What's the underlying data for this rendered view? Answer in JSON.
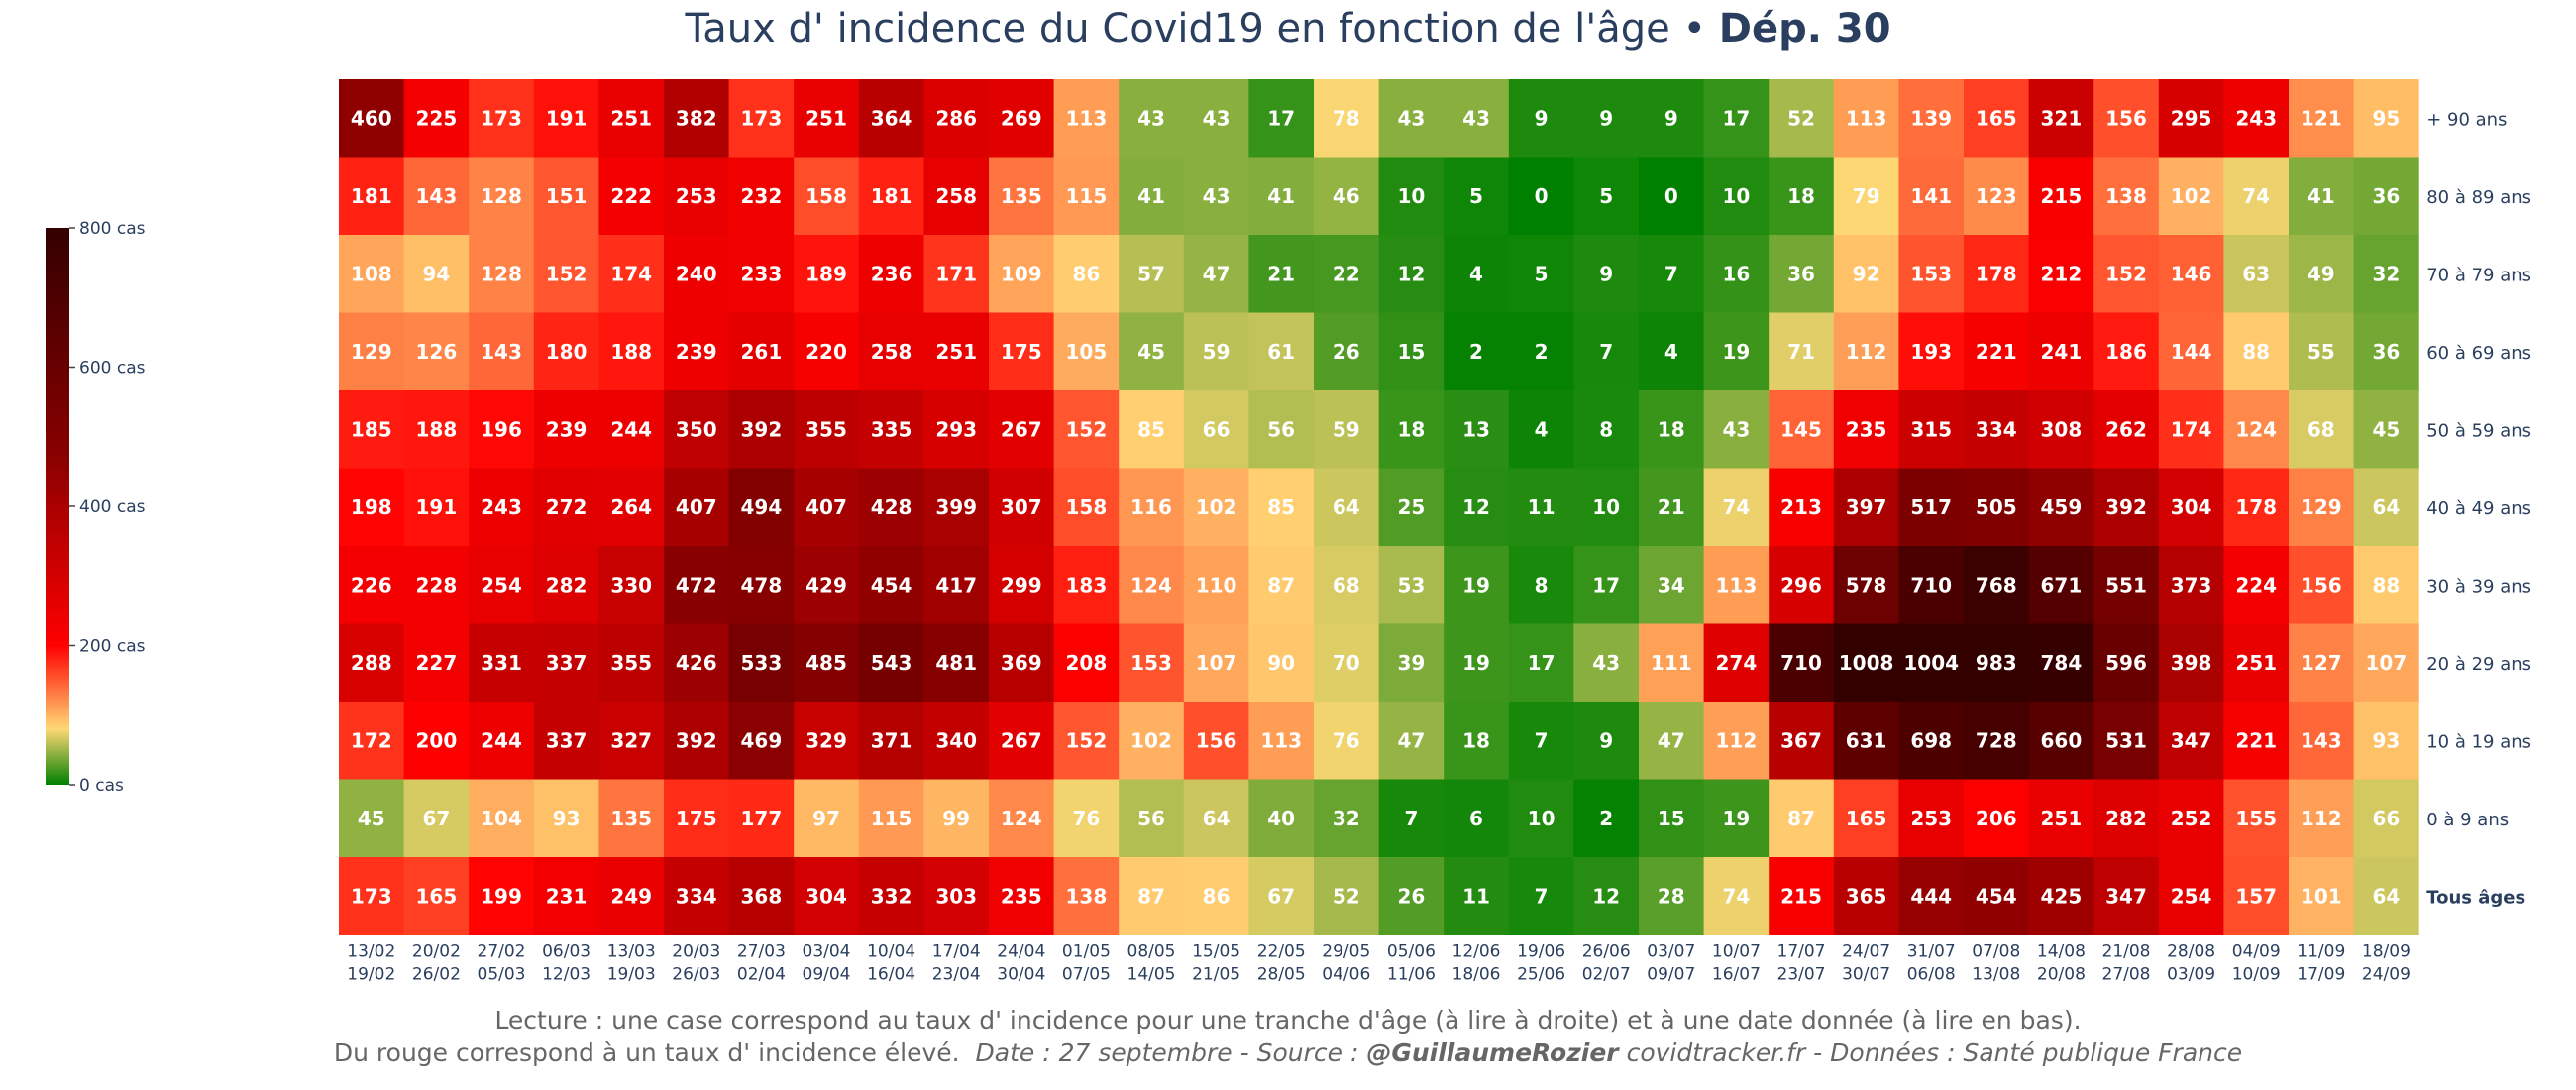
{
  "title": {
    "main": "Taux d' incidence du Covid19 en fonction de l'âge",
    "separator": " • ",
    "dept": "Dép. 30"
  },
  "footer": {
    "line1": "Lecture : une case correspond au taux d' incidence pour une tranche d'âge (à lire à droite) et à une date donnée (à lire en bas).",
    "line2_plain": "Du rouge correspond à un taux d' incidence élevé.",
    "line2_date_source": "Date : 27 septembre - Source : ",
    "line2_author": "@GuillaumeRozier",
    "line2_rest": " covidtracker.fr - Données : Santé publique France"
  },
  "colors": {
    "scale": [
      "#008000",
      "#ffd875",
      "#ff0000",
      "#860000",
      "#330000"
    ],
    "text": "#2a3f5f",
    "cell_text": "#ffffff"
  },
  "chart_data": {
    "type": "heatmap",
    "colorbar": {
      "ticks": [
        0,
        200,
        400,
        600,
        800
      ],
      "tick_labels": [
        "0 cas",
        "200 cas",
        "400 cas",
        "600 cas",
        "800 cas"
      ],
      "range": [
        0,
        800
      ]
    },
    "x_top": [
      "13/02",
      "20/02",
      "27/02",
      "06/03",
      "13/03",
      "20/03",
      "27/03",
      "03/04",
      "10/04",
      "17/04",
      "24/04",
      "01/05",
      "08/05",
      "15/05",
      "22/05",
      "29/05",
      "05/06",
      "12/06",
      "19/06",
      "26/06",
      "03/07",
      "10/07",
      "17/07",
      "24/07",
      "31/07",
      "07/08",
      "14/08",
      "21/08",
      "28/08",
      "04/09",
      "11/09",
      "18/09"
    ],
    "x_bottom": [
      "19/02",
      "26/02",
      "05/03",
      "12/03",
      "19/03",
      "26/03",
      "02/04",
      "09/04",
      "16/04",
      "23/04",
      "30/04",
      "07/05",
      "14/05",
      "21/05",
      "28/05",
      "04/06",
      "11/06",
      "18/06",
      "25/06",
      "02/07",
      "09/07",
      "16/07",
      "23/07",
      "30/07",
      "06/08",
      "13/08",
      "20/08",
      "27/08",
      "03/09",
      "10/09",
      "17/09",
      "24/09"
    ],
    "rows": [
      {
        "label": "+ 90 ans",
        "bold": false,
        "values": [
          460,
          225,
          173,
          191,
          251,
          382,
          173,
          251,
          364,
          286,
          269,
          113,
          43,
          43,
          17,
          78,
          43,
          43,
          9,
          9,
          9,
          17,
          52,
          113,
          139,
          165,
          321,
          156,
          295,
          243,
          121,
          95
        ]
      },
      {
        "label": "80 à 89 ans",
        "bold": false,
        "values": [
          181,
          143,
          128,
          151,
          222,
          253,
          232,
          158,
          181,
          258,
          135,
          115,
          41,
          43,
          41,
          46,
          10,
          5,
          0,
          5,
          0,
          10,
          18,
          79,
          141,
          123,
          215,
          138,
          102,
          74,
          41,
          36
        ]
      },
      {
        "label": "70 à 79 ans",
        "bold": false,
        "values": [
          108,
          94,
          128,
          152,
          174,
          240,
          233,
          189,
          236,
          171,
          109,
          86,
          57,
          47,
          21,
          22,
          12,
          4,
          5,
          9,
          7,
          16,
          36,
          92,
          153,
          178,
          212,
          152,
          146,
          63,
          49,
          32
        ]
      },
      {
        "label": "60 à 69 ans",
        "bold": false,
        "values": [
          129,
          126,
          143,
          180,
          188,
          239,
          261,
          220,
          258,
          251,
          175,
          105,
          45,
          59,
          61,
          26,
          15,
          2,
          2,
          7,
          4,
          19,
          71,
          112,
          193,
          221,
          241,
          186,
          144,
          88,
          55,
          36
        ]
      },
      {
        "label": "50 à 59 ans",
        "bold": false,
        "values": [
          185,
          188,
          196,
          239,
          244,
          350,
          392,
          355,
          335,
          293,
          267,
          152,
          85,
          66,
          56,
          59,
          18,
          13,
          4,
          8,
          18,
          43,
          145,
          235,
          315,
          334,
          308,
          262,
          174,
          124,
          68,
          45
        ]
      },
      {
        "label": "40 à 49 ans",
        "bold": false,
        "values": [
          198,
          191,
          243,
          272,
          264,
          407,
          494,
          407,
          428,
          399,
          307,
          158,
          116,
          102,
          85,
          64,
          25,
          12,
          11,
          10,
          21,
          74,
          213,
          397,
          517,
          505,
          459,
          392,
          304,
          178,
          129,
          64
        ]
      },
      {
        "label": "30 à 39 ans",
        "bold": false,
        "values": [
          226,
          228,
          254,
          282,
          330,
          472,
          478,
          429,
          454,
          417,
          299,
          183,
          124,
          110,
          87,
          68,
          53,
          19,
          8,
          17,
          34,
          113,
          296,
          578,
          710,
          768,
          671,
          551,
          373,
          224,
          156,
          88
        ]
      },
      {
        "label": "20 à 29 ans",
        "bold": false,
        "values": [
          288,
          227,
          331,
          337,
          355,
          426,
          533,
          485,
          543,
          481,
          369,
          208,
          153,
          107,
          90,
          70,
          39,
          19,
          17,
          43,
          111,
          274,
          710,
          1008,
          1004,
          983,
          784,
          596,
          398,
          251,
          127,
          107
        ]
      },
      {
        "label": "10 à 19 ans",
        "bold": false,
        "values": [
          172,
          200,
          244,
          337,
          327,
          392,
          469,
          329,
          371,
          340,
          267,
          152,
          102,
          156,
          113,
          76,
          47,
          18,
          7,
          9,
          47,
          112,
          367,
          631,
          698,
          728,
          660,
          531,
          347,
          221,
          143,
          93
        ]
      },
      {
        "label": "0 à 9 ans",
        "bold": false,
        "values": [
          45,
          67,
          104,
          93,
          135,
          175,
          177,
          97,
          115,
          99,
          124,
          76,
          56,
          64,
          40,
          32,
          7,
          6,
          10,
          2,
          15,
          19,
          87,
          165,
          253,
          206,
          251,
          282,
          252,
          155,
          112,
          66
        ]
      },
      {
        "label": "Tous âges",
        "bold": true,
        "values": [
          173,
          165,
          199,
          231,
          249,
          334,
          368,
          304,
          332,
          303,
          235,
          138,
          87,
          86,
          67,
          52,
          26,
          11,
          7,
          12,
          28,
          74,
          215,
          365,
          444,
          454,
          425,
          347,
          254,
          157,
          101,
          64
        ]
      }
    ]
  }
}
